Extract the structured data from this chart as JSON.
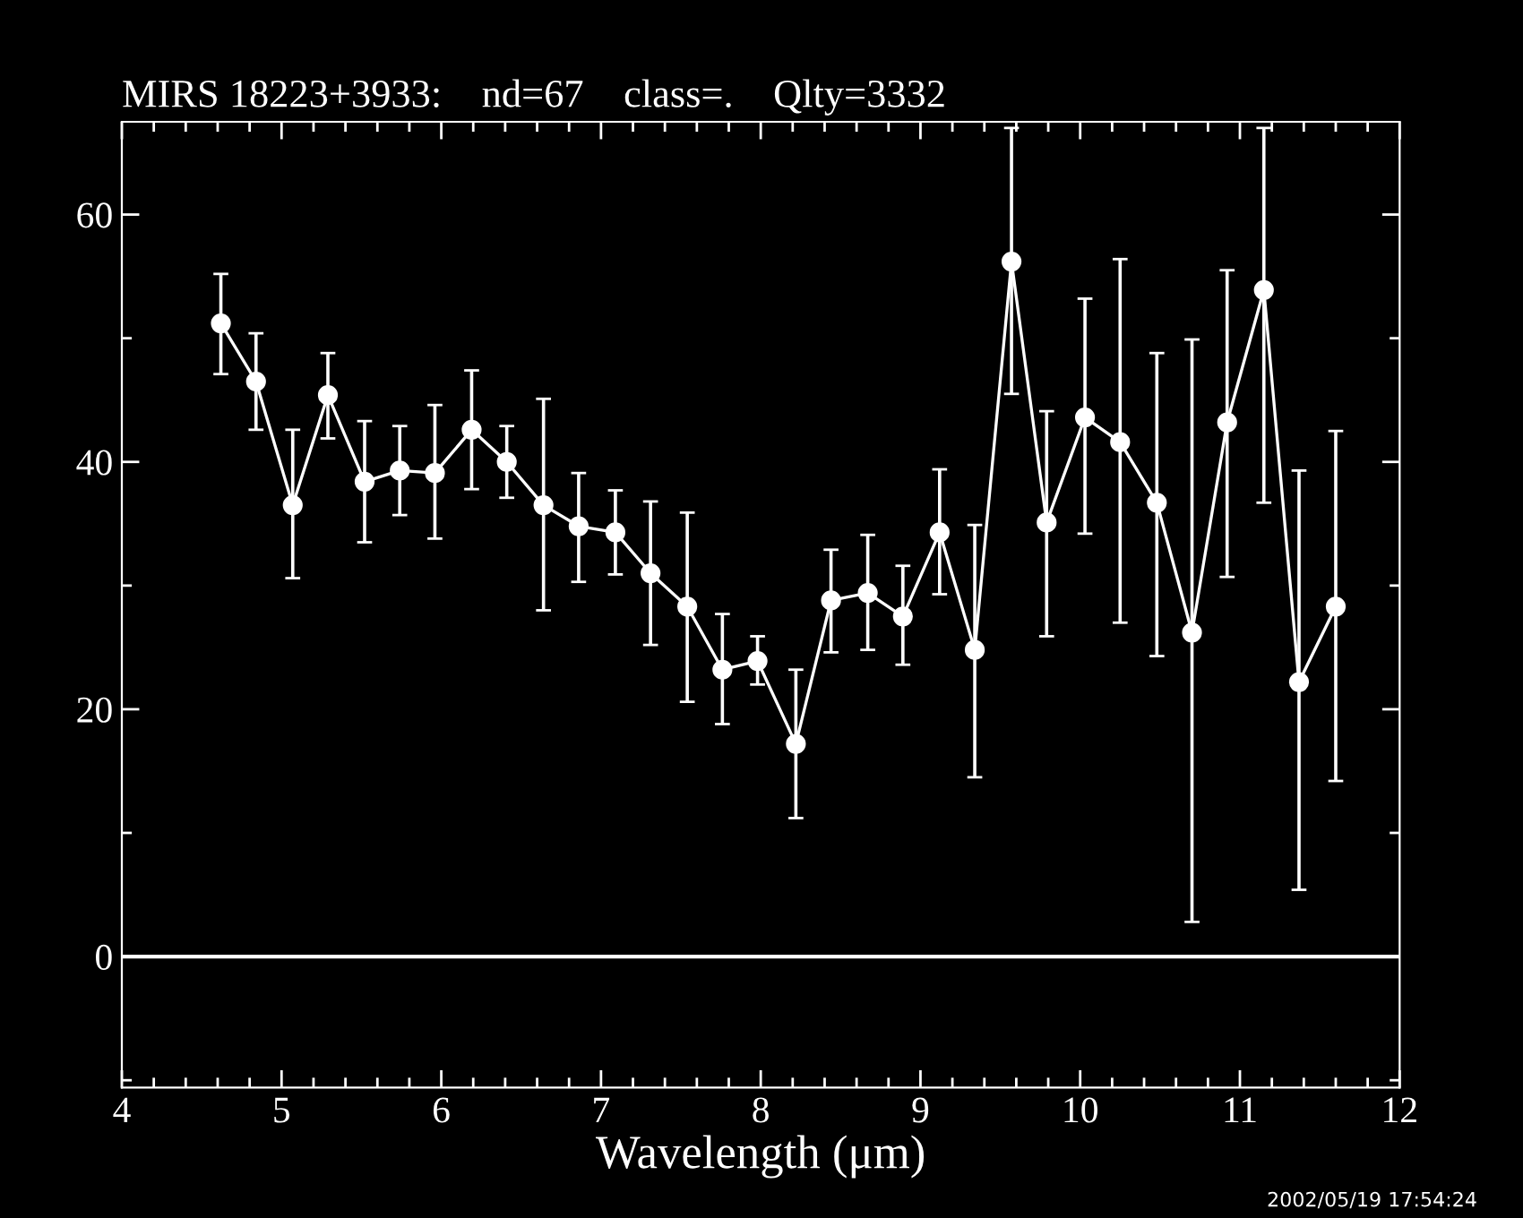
{
  "chart_data": {
    "type": "line",
    "title": "MIRS 18223+3933:    nd=67    class=.    Qlty=3332",
    "xlabel": "Wavelength (μm)",
    "x": [
      4.62,
      4.84,
      5.07,
      5.29,
      5.52,
      5.74,
      5.96,
      6.19,
      6.41,
      6.64,
      6.86,
      7.09,
      7.31,
      7.54,
      7.76,
      7.98,
      8.22,
      8.44,
      8.67,
      8.89,
      9.12,
      9.34,
      9.57,
      9.79,
      10.03,
      10.25,
      10.48,
      10.7,
      10.92,
      11.15,
      11.37,
      11.6
    ],
    "series": [
      {
        "color": "#ffffff",
        "values": [
          51.2,
          46.5,
          36.5,
          45.4,
          38.4,
          39.3,
          39.1,
          42.6,
          40.0,
          36.5,
          34.8,
          34.3,
          31.0,
          28.3,
          23.2,
          23.9,
          17.2,
          28.8,
          29.4,
          27.5,
          34.3,
          24.8,
          56.2,
          35.1,
          43.6,
          41.6,
          36.7,
          26.2,
          43.2,
          53.9,
          22.2,
          28.3
        ],
        "errors": [
          [
            47.1,
            55.2
          ],
          [
            42.6,
            50.4
          ],
          [
            30.6,
            42.6
          ],
          [
            41.9,
            48.8
          ],
          [
            33.5,
            43.3
          ],
          [
            35.7,
            42.9
          ],
          [
            33.8,
            44.6
          ],
          [
            37.8,
            47.4
          ],
          [
            37.1,
            42.9
          ],
          [
            28.0,
            45.1
          ],
          [
            30.3,
            39.1
          ],
          [
            30.9,
            37.7
          ],
          [
            25.2,
            36.8
          ],
          [
            20.6,
            35.9
          ],
          [
            18.8,
            27.7
          ],
          [
            22.0,
            25.9
          ],
          [
            11.2,
            23.2
          ],
          [
            24.6,
            32.9
          ],
          [
            24.8,
            34.1
          ],
          [
            23.6,
            31.6
          ],
          [
            29.3,
            39.4
          ],
          [
            14.5,
            34.9
          ],
          [
            45.5,
            67.0
          ],
          [
            25.9,
            44.1
          ],
          [
            34.2,
            53.2
          ],
          [
            27.0,
            56.4
          ],
          [
            24.3,
            48.8
          ],
          [
            2.8,
            49.9
          ],
          [
            30.7,
            55.5
          ],
          [
            36.7,
            67.0
          ],
          [
            5.4,
            39.3
          ],
          [
            14.2,
            42.5
          ]
        ]
      }
    ],
    "marker": "circle",
    "line_style": "solid",
    "xlim": [
      4,
      12
    ],
    "xticks": [
      4,
      {
        "value": 4.2,
        "label": null
      },
      {
        "value": 4.4,
        "label": null
      },
      {
        "value": 4.6,
        "label": null
      },
      {
        "value": 4.8,
        "label": null
      },
      5,
      {
        "value": 5.2,
        "label": null
      },
      {
        "value": 5.4,
        "label": null
      },
      {
        "value": 5.6,
        "label": null
      },
      {
        "value": 5.8,
        "label": null
      },
      6,
      {
        "value": 6.2,
        "label": null
      },
      {
        "value": 6.4,
        "label": null
      },
      {
        "value": 6.6,
        "label": null
      },
      {
        "value": 6.8,
        "label": null
      },
      7,
      {
        "value": 7.2,
        "label": null
      },
      {
        "value": 7.4,
        "label": null
      },
      {
        "value": 7.6,
        "label": null
      },
      {
        "value": 7.8,
        "label": null
      },
      8,
      {
        "value": 8.2,
        "label": null
      },
      {
        "value": 8.4,
        "label": null
      },
      {
        "value": 8.6,
        "label": null
      },
      {
        "value": 8.8,
        "label": null
      },
      9,
      {
        "value": 9.2,
        "label": null
      },
      {
        "value": 9.4,
        "label": null
      },
      {
        "value": 9.6,
        "label": null
      },
      {
        "value": 9.8,
        "label": null
      },
      10,
      {
        "value": 10.2,
        "label": null
      },
      {
        "value": 10.4,
        "label": null
      },
      {
        "value": 10.6,
        "label": null
      },
      {
        "value": 10.8,
        "label": null
      },
      11,
      {
        "value": 11.2,
        "label": null
      },
      {
        "value": 11.4,
        "label": null
      },
      {
        "value": 11.6,
        "label": null
      },
      {
        "value": 11.8,
        "label": null
      },
      12
    ],
    "ylim": [
      -10.6,
      67.5
    ],
    "yticks": [
      {
        "value": -10,
        "label": null
      },
      0,
      {
        "value": 10,
        "label": null
      },
      20,
      {
        "value": 30,
        "label": null
      },
      40,
      {
        "value": 50,
        "label": null
      },
      60
    ],
    "ref_lines": [
      {
        "axis": "y",
        "value": 0,
        "color": "#ffffff"
      }
    ],
    "annotations": [
      "2002/05/19 17:54:24"
    ],
    "grid": false
  }
}
